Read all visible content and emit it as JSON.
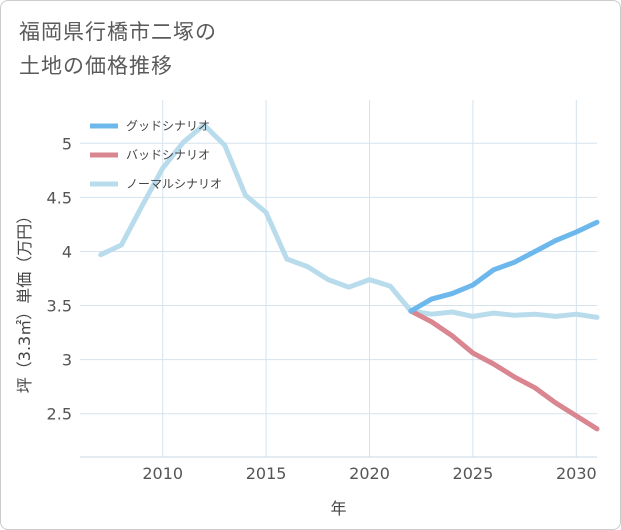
{
  "title_line1": "福岡県行橋市二塚の",
  "title_line2": "土地の価格推移",
  "chart_data": {
    "type": "line",
    "title": "福岡県行橋市二塚の土地の価格推移",
    "xlabel": "年",
    "ylabel": "坪（3.3㎡）単価（万円）",
    "xlim": [
      2006,
      2031
    ],
    "ylim": [
      2.1,
      5.4
    ],
    "xticks": [
      2010,
      2015,
      2020,
      2025,
      2030
    ],
    "yticks": [
      2.5,
      3,
      3.5,
      4,
      4.5,
      5
    ],
    "xtick_labels": [
      "2010",
      "2015",
      "2020",
      "2025",
      "2030"
    ],
    "ytick_labels": [
      "2.5",
      "3",
      "3.5",
      "4",
      "4.5",
      "5"
    ],
    "legend_position": "top-left",
    "series": [
      {
        "name": "グッドシナリオ",
        "color": "#6cb8ed",
        "x": [
          2022,
          2023,
          2024,
          2025,
          2026,
          2027,
          2028,
          2029,
          2030,
          2031
        ],
        "y": [
          3.45,
          3.56,
          3.61,
          3.69,
          3.83,
          3.9,
          4.0,
          4.1,
          4.18,
          4.27
        ]
      },
      {
        "name": "バッドシナリオ",
        "color": "#da8690",
        "x": [
          2022,
          2023,
          2024,
          2025,
          2026,
          2027,
          2028,
          2029,
          2030,
          2031
        ],
        "y": [
          3.45,
          3.35,
          3.22,
          3.06,
          2.96,
          2.84,
          2.74,
          2.6,
          2.48,
          2.36
        ]
      },
      {
        "name": "ノーマルシナリオ",
        "color": "#b9dcec",
        "x": [
          2007,
          2008,
          2009,
          2010,
          2011,
          2012,
          2013,
          2014,
          2015,
          2016,
          2017,
          2018,
          2019,
          2020,
          2021,
          2022,
          2023,
          2024,
          2025,
          2026,
          2027,
          2028,
          2029,
          2030,
          2031
        ],
        "y": [
          3.97,
          4.06,
          4.42,
          4.77,
          5.01,
          5.17,
          4.98,
          4.52,
          4.36,
          3.93,
          3.86,
          3.74,
          3.67,
          3.74,
          3.68,
          3.45,
          3.42,
          3.44,
          3.4,
          3.43,
          3.41,
          3.42,
          3.4,
          3.42,
          3.39
        ]
      }
    ]
  }
}
